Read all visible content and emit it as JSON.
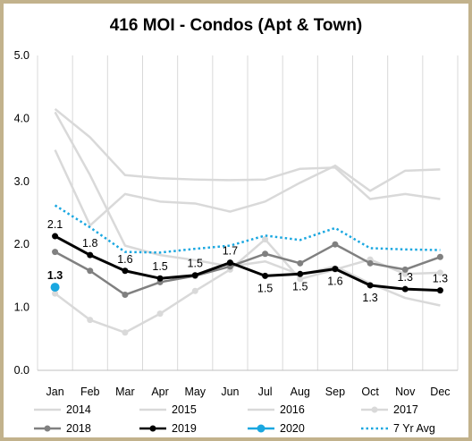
{
  "chart_data": {
    "type": "line",
    "title": "416 MOI - Condos (Apt & Town)",
    "categories": [
      "Jan",
      "Feb",
      "Mar",
      "Apr",
      "May",
      "Jun",
      "Jul",
      "Aug",
      "Sep",
      "Oct",
      "Nov",
      "Dec"
    ],
    "ylim": [
      0,
      5
    ],
    "yticks": [
      "0.0",
      "1.0",
      "2.0",
      "3.0",
      "4.0",
      "5.0"
    ],
    "grid": "vertical",
    "legend_position": "bottom",
    "series": [
      {
        "name": "2014",
        "color": "#d9d9d9",
        "dash": false,
        "markers": false,
        "values": [
          4.15,
          3.7,
          3.1,
          3.05,
          3.03,
          3.02,
          3.03,
          3.2,
          3.22,
          2.72,
          2.8,
          2.72
        ]
      },
      {
        "name": "2015",
        "color": "#d9d9d9",
        "dash": false,
        "markers": false,
        "values": [
          3.5,
          2.3,
          2.8,
          2.68,
          2.65,
          2.52,
          2.68,
          2.98,
          3.25,
          2.85,
          3.17,
          3.19
        ]
      },
      {
        "name": "2016",
        "color": "#d9d9d9",
        "dash": false,
        "markers": false,
        "values": [
          4.1,
          3.1,
          1.98,
          1.83,
          1.75,
          1.65,
          1.73,
          1.52,
          1.65,
          1.38,
          1.15,
          1.03
        ]
      },
      {
        "name": "2017",
        "color": "#d9d9d9",
        "dash": false,
        "markers": true,
        "values": [
          1.22,
          0.8,
          0.6,
          0.9,
          1.26,
          1.6,
          2.08,
          1.45,
          1.6,
          1.76,
          1.53,
          1.55
        ]
      },
      {
        "name": "2018",
        "color": "#808080",
        "dash": false,
        "markers": true,
        "values": [
          1.88,
          1.58,
          1.2,
          1.4,
          1.5,
          1.65,
          1.85,
          1.7,
          2.0,
          1.7,
          1.6,
          1.8
        ]
      },
      {
        "name": "2019",
        "color": "#000000",
        "dash": false,
        "markers": true,
        "values": [
          2.13,
          1.83,
          1.58,
          1.46,
          1.51,
          1.71,
          1.5,
          1.53,
          1.61,
          1.35,
          1.29,
          1.27
        ]
      },
      {
        "name": "2020",
        "color": "#1aa7e0",
        "dash": false,
        "markers": true,
        "values": [
          1.32,
          null,
          null,
          null,
          null,
          null,
          null,
          null,
          null,
          null,
          null,
          null
        ]
      },
      {
        "name": "7 Yr Avg",
        "color": "#1aa7e0",
        "dash": true,
        "markers": false,
        "values": [
          2.62,
          2.27,
          1.88,
          1.87,
          1.93,
          1.98,
          2.14,
          2.07,
          2.26,
          1.94,
          1.92,
          1.91
        ]
      }
    ],
    "data_labels": [
      {
        "text": "2.1",
        "x": "Jan",
        "y": 2.13,
        "above": true,
        "color": "#000000"
      },
      {
        "text": "1.3",
        "x": "Jan",
        "y": 1.32,
        "above": true,
        "color": "#1aa7e0"
      },
      {
        "text": "1.8",
        "x": "Feb",
        "y": 1.83,
        "above": true,
        "color": "#000000"
      },
      {
        "text": "1.6",
        "x": "Mar",
        "y": 1.58,
        "above": true,
        "color": "#000000"
      },
      {
        "text": "1.5",
        "x": "Apr",
        "y": 1.46,
        "above": true,
        "color": "#000000"
      },
      {
        "text": "1.5",
        "x": "May",
        "y": 1.51,
        "above": true,
        "color": "#000000"
      },
      {
        "text": "1.7",
        "x": "Jun",
        "y": 1.71,
        "above": true,
        "color": "#000000"
      },
      {
        "text": "1.5",
        "x": "Jul",
        "y": 1.5,
        "above": false,
        "color": "#000000"
      },
      {
        "text": "1.5",
        "x": "Aug",
        "y": 1.53,
        "above": false,
        "color": "#000000"
      },
      {
        "text": "1.6",
        "x": "Sep",
        "y": 1.61,
        "above": false,
        "color": "#000000"
      },
      {
        "text": "1.3",
        "x": "Oct",
        "y": 1.35,
        "above": false,
        "color": "#000000"
      },
      {
        "text": "1.3",
        "x": "Nov",
        "y": 1.29,
        "above": true,
        "color": "#000000"
      },
      {
        "text": "1.3",
        "x": "Dec",
        "y": 1.27,
        "above": true,
        "color": "#000000"
      }
    ]
  }
}
